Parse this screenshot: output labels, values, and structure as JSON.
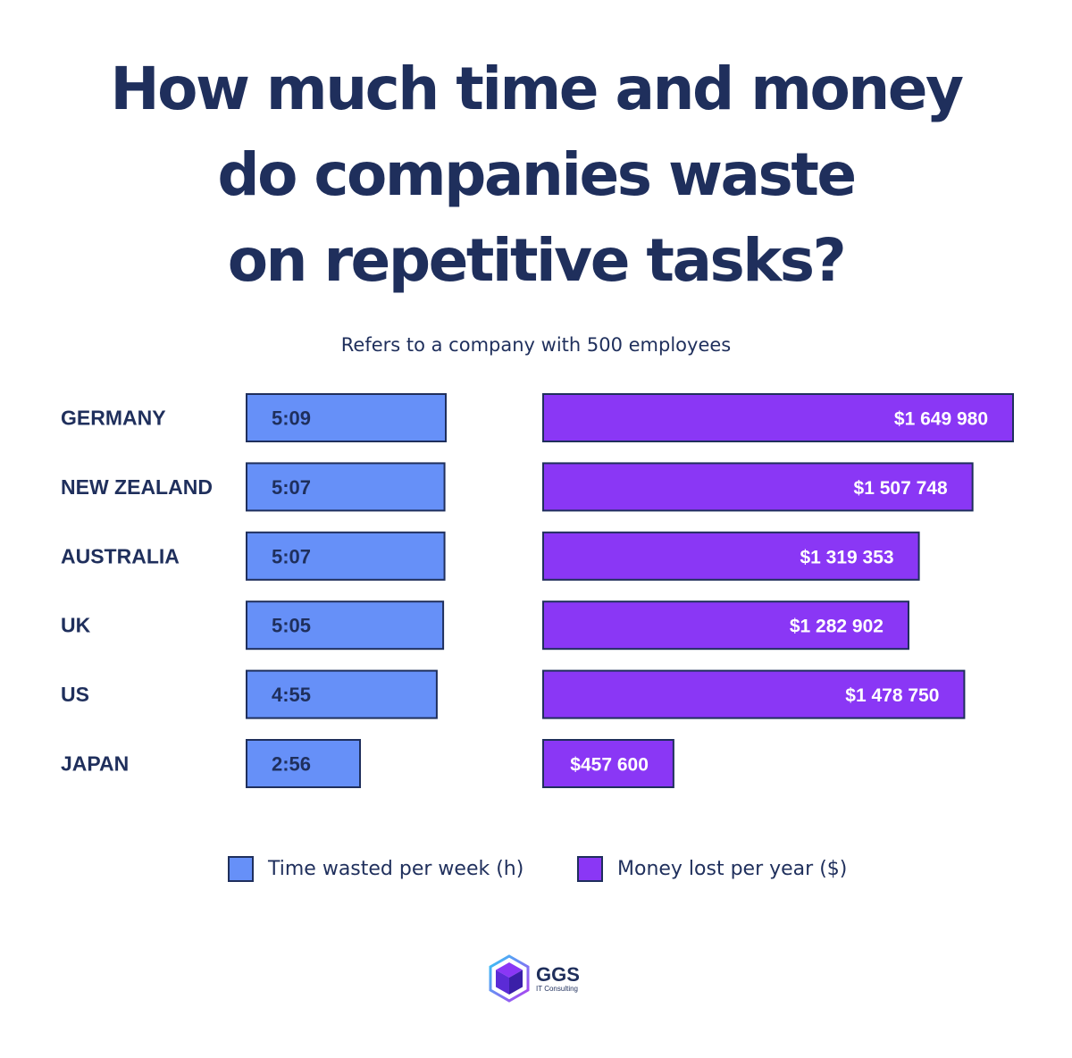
{
  "chart_data": {
    "type": "bar",
    "title_lines": [
      "How much time and money",
      "do companies waste",
      "on repetitive tasks?"
    ],
    "subtitle": "Refers to a company with 500 employees",
    "categories": [
      "GERMANY",
      "NEW ZEALAND",
      "AUSTRALIA",
      "UK",
      "US",
      "JAPAN"
    ],
    "series": [
      {
        "name": "Time wasted per week (h)",
        "color": "#6690f8",
        "values": [
          5.15,
          5.117,
          5.117,
          5.083,
          4.917,
          2.933
        ],
        "labels": [
          "5:09",
          "5:07",
          "5:07",
          "5:05",
          "4:55",
          "2:56"
        ]
      },
      {
        "name": "Money lost per year ($)",
        "color": "#8a37f5",
        "values": [
          1649980,
          1507748,
          1319353,
          1282902,
          1478750,
          457600
        ],
        "labels": [
          "$1 649 980",
          "$1 507 748",
          "$1 319 353",
          "$1 282 902",
          "$1 478 750",
          "$457 600"
        ]
      }
    ],
    "legend_position": "bottom",
    "grid": false
  },
  "colors": {
    "text": "#1f2f5c",
    "border": "#1f2f5c",
    "time": "#6690f8",
    "money": "#8a37f5"
  },
  "logo": {
    "name": "GGS",
    "sub": "IT Consulting",
    "icon": "cube-icon"
  }
}
